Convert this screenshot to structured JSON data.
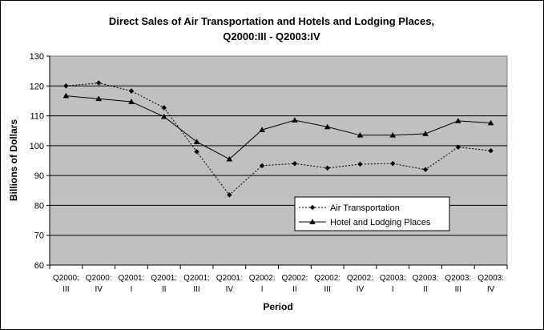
{
  "chart_data": {
    "type": "line",
    "title_line1": "Direct Sales of Air Transportation and Hotels and Lodging Places,",
    "title_line2": "Q2000:III - Q2003:IV",
    "xlabel": "Period",
    "ylabel": "Billions of Dollars",
    "ylim": [
      60,
      130
    ],
    "yticks": [
      60,
      70,
      80,
      90,
      100,
      110,
      120,
      130
    ],
    "grid": true,
    "legend_position": "center-right",
    "categories": [
      {
        "line1": "Q2000:",
        "line2": "III"
      },
      {
        "line1": "Q2000:",
        "line2": "IV"
      },
      {
        "line1": "Q2001:",
        "line2": "I"
      },
      {
        "line1": "Q2001:",
        "line2": "II"
      },
      {
        "line1": "Q2001:",
        "line2": "III"
      },
      {
        "line1": "Q2001:",
        "line2": "IV"
      },
      {
        "line1": "Q2002:",
        "line2": "I"
      },
      {
        "line1": "Q2002:",
        "line2": "II"
      },
      {
        "line1": "Q2002:",
        "line2": "III"
      },
      {
        "line1": "Q2002:",
        "line2": "IV"
      },
      {
        "line1": "Q2003:",
        "line2": "I"
      },
      {
        "line1": "Q2003:",
        "line2": "II"
      },
      {
        "line1": "Q2003:",
        "line2": "III"
      },
      {
        "line1": "Q2003:",
        "line2": "IV"
      }
    ],
    "series": [
      {
        "name": "Air Transportation",
        "marker": "diamond",
        "line_style": "dotted",
        "values": [
          120.0,
          121.0,
          118.3,
          112.7,
          98.0,
          83.5,
          93.3,
          94.0,
          92.5,
          93.8,
          94.0,
          92.0,
          99.5,
          98.3
        ]
      },
      {
        "name": "Hotel and Lodging Places",
        "marker": "triangle",
        "line_style": "solid",
        "values": [
          116.7,
          115.7,
          114.7,
          109.7,
          101.3,
          95.5,
          105.3,
          108.5,
          106.3,
          103.5,
          103.5,
          104.0,
          108.3,
          107.6
        ]
      }
    ],
    "colors": {
      "plot_background": "#c0c0c0",
      "gridline": "#000000",
      "series": "#000000"
    }
  }
}
